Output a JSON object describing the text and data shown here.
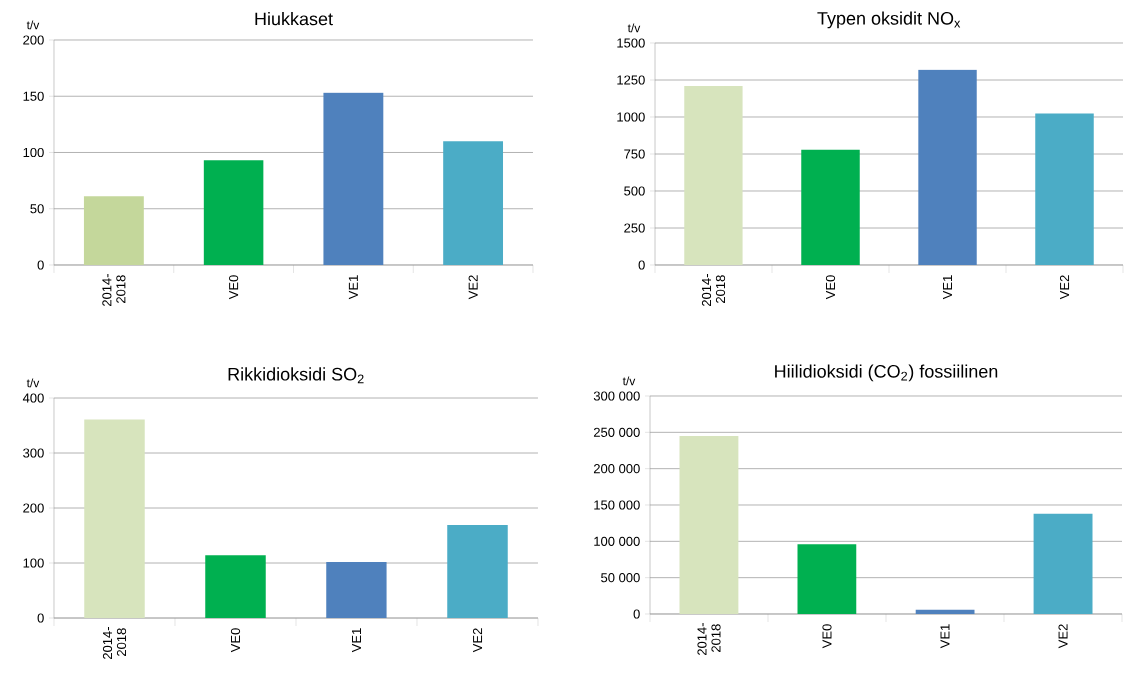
{
  "chart_data": [
    {
      "type": "bar",
      "title": "Hiukkaset",
      "ylabel": "t/v",
      "categories": [
        "2014- 2018",
        "VE0",
        "VE1",
        "VE2"
      ],
      "values": [
        61,
        93,
        153,
        110
      ],
      "colors": [
        "#c4d79b",
        "#00b050",
        "#4f81bd",
        "#4bacc6"
      ],
      "ylim": [
        0,
        200
      ],
      "yticks": [
        0,
        50,
        100,
        150,
        200
      ],
      "grid": "y"
    },
    {
      "type": "bar",
      "title": "Typen oksidit NO$_{x}$",
      "ylabel": "t/v",
      "categories": [
        "2014- 2018",
        "VE0",
        "VE1",
        "VE2"
      ],
      "values": [
        1210,
        778,
        1319,
        1024
      ],
      "colors": [
        "#d7e4bd",
        "#00b050",
        "#4f81bd",
        "#4bacc6"
      ],
      "ylim": [
        0,
        1500
      ],
      "yticks": [
        0,
        250,
        500,
        750,
        1000,
        1250,
        1500
      ],
      "grid": "y"
    },
    {
      "type": "bar",
      "title": "Rikkidioksidi SO$_{2}$",
      "ylabel": "t/v",
      "categories": [
        "2014- 2018",
        "VE0",
        "VE1",
        "VE2"
      ],
      "values": [
        361,
        114,
        102,
        169
      ],
      "colors": [
        "#d7e4bd",
        "#00b050",
        "#4f81bd",
        "#4bacc6"
      ],
      "ylim": [
        0,
        400
      ],
      "yticks": [
        0,
        100,
        200,
        300,
        400
      ],
      "grid": "y"
    },
    {
      "type": "bar",
      "title": "Hiilidioksidi (CO$_{2}$) fossiilinen",
      "ylabel": "t/v",
      "categories": [
        "2014- 2018",
        "VE0",
        "VE1",
        "VE2"
      ],
      "values": [
        245000,
        96000,
        6000,
        138000
      ],
      "colors": [
        "#d7e4bd",
        "#00b050",
        "#4f81bd",
        "#4bacc6"
      ],
      "ylim": [
        0,
        300000
      ],
      "yticks": [
        0,
        {
          "value": 50000,
          "label": "50 000"
        },
        {
          "value": 100000,
          "label": "100 000"
        },
        {
          "value": 150000,
          "label": "150 000"
        },
        {
          "value": 200000,
          "label": "200 000"
        },
        {
          "value": 250000,
          "label": "250 000"
        },
        {
          "value": 300000,
          "label": "300 000"
        }
      ],
      "grid": "y"
    }
  ]
}
